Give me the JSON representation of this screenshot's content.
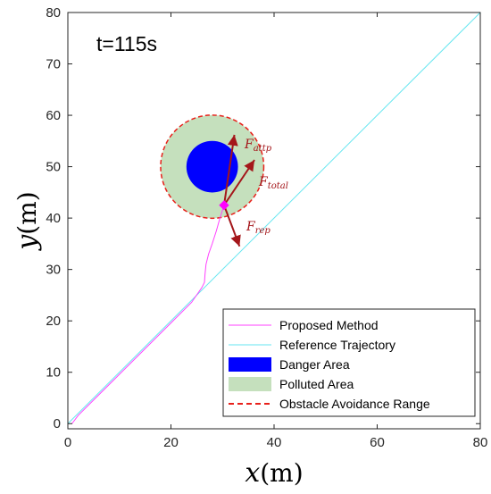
{
  "chart_data": {
    "type": "line",
    "time_label": "t=115s",
    "xlabel": "x",
    "xunit": "(m)",
    "ylabel": "y",
    "yunit": "(m)",
    "xlim": [
      0,
      80
    ],
    "ylim": [
      -1,
      80
    ],
    "xticks": [
      "0",
      "20",
      "40",
      "60",
      "80"
    ],
    "yticks": [
      "0",
      "10",
      "20",
      "30",
      "40",
      "50",
      "60",
      "70",
      "80"
    ],
    "grid": false,
    "legend_position": "bottom-right",
    "colors": {
      "proposed": "#ff40ff",
      "reference": "#66e6f0",
      "danger": "#0000ff",
      "polluted": "#c5e0bd",
      "avoidance": "#e8201a",
      "force": "#a4161a",
      "vehicle": "#ff00ff"
    },
    "series": [
      {
        "name": "Proposed Method",
        "points": [
          [
            0.8,
            0
          ],
          [
            2,
            1.6
          ],
          [
            5,
            4.6
          ],
          [
            10,
            9.6
          ],
          [
            15,
            14.6
          ],
          [
            20,
            19.6
          ],
          [
            24,
            23.6
          ],
          [
            26,
            26.5
          ],
          [
            26.5,
            27.5
          ],
          [
            26.6,
            29
          ],
          [
            26.8,
            31
          ],
          [
            27.3,
            33
          ],
          [
            28.0,
            35
          ],
          [
            28.8,
            37.5
          ],
          [
            29.5,
            40
          ],
          [
            30.3,
            42.5
          ]
        ]
      },
      {
        "name": "Reference Trajectory",
        "points": [
          [
            0,
            0
          ],
          [
            80,
            80
          ]
        ]
      }
    ],
    "areas": [
      {
        "name": "Danger Area",
        "center": [
          28,
          50
        ],
        "radius": 5
      },
      {
        "name": "Polluted Area",
        "center": [
          28,
          50
        ],
        "radius": 10
      },
      {
        "name": "Obstacle Avoidance Range",
        "center": [
          28,
          50
        ],
        "radius": 10
      }
    ],
    "vehicle_position": [
      30.3,
      42.5
    ],
    "forces": [
      {
        "main": "F",
        "sub": "attp",
        "end": [
          32.3,
          56.2
        ]
      },
      {
        "main": "F",
        "sub": "total",
        "end": [
          36.2,
          51.3
        ]
      },
      {
        "main": "F",
        "sub": "rep",
        "end": [
          33.3,
          34.5
        ]
      }
    ],
    "legend": [
      "Proposed Method",
      "Reference Trajectory",
      "Danger Area",
      "Polluted Area",
      "Obstacle Avoidance Range"
    ]
  }
}
